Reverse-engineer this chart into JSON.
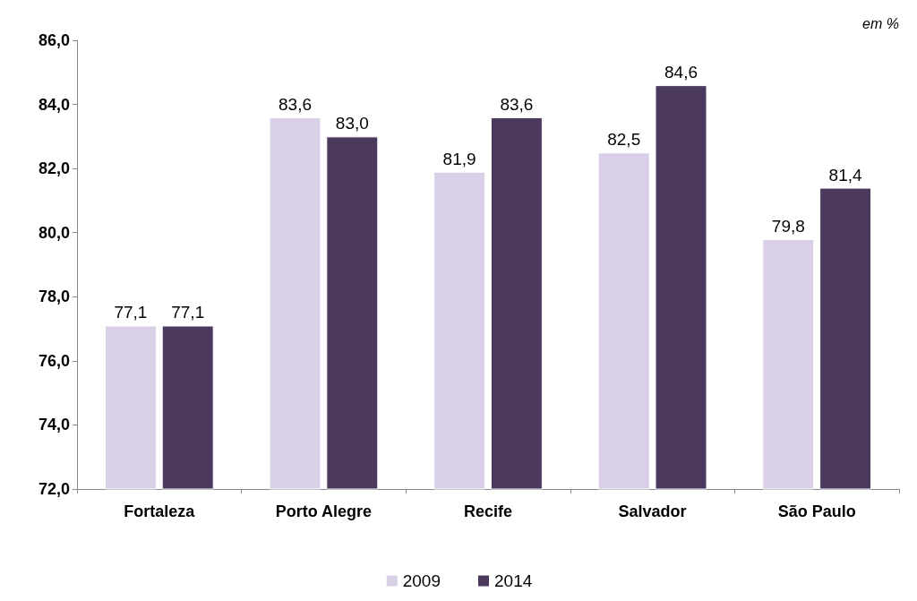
{
  "chart_data": {
    "type": "bar",
    "categories": [
      "Fortaleza",
      "Porto Alegre",
      "Recife",
      "Salvador",
      "São Paulo"
    ],
    "series": [
      {
        "name": "2009",
        "color": "#d9d0e8",
        "values": [
          77.1,
          83.6,
          81.9,
          82.5,
          79.8
        ],
        "value_labels": [
          "77,1",
          "83,6",
          "81,9",
          "82,5",
          "79,8"
        ]
      },
      {
        "name": "2014",
        "color": "#4b3a5e",
        "values": [
          77.1,
          83.0,
          83.6,
          84.6,
          81.4
        ],
        "value_labels": [
          "77,1",
          "83,0",
          "83,6",
          "84,6",
          "81,4"
        ]
      }
    ],
    "ylim": [
      72,
      86
    ],
    "yticks": [
      {
        "value": 72,
        "label": "72,0"
      },
      {
        "value": 74,
        "label": "74,0"
      },
      {
        "value": 76,
        "label": "76,0"
      },
      {
        "value": 78,
        "label": "78,0"
      },
      {
        "value": 80,
        "label": "80,0"
      },
      {
        "value": 82,
        "label": "82,0"
      },
      {
        "value": 84,
        "label": "84,0"
      },
      {
        "value": 86,
        "label": "86,0"
      }
    ],
    "annotations": [
      "em %"
    ],
    "grid": false,
    "legend": "bottom"
  }
}
